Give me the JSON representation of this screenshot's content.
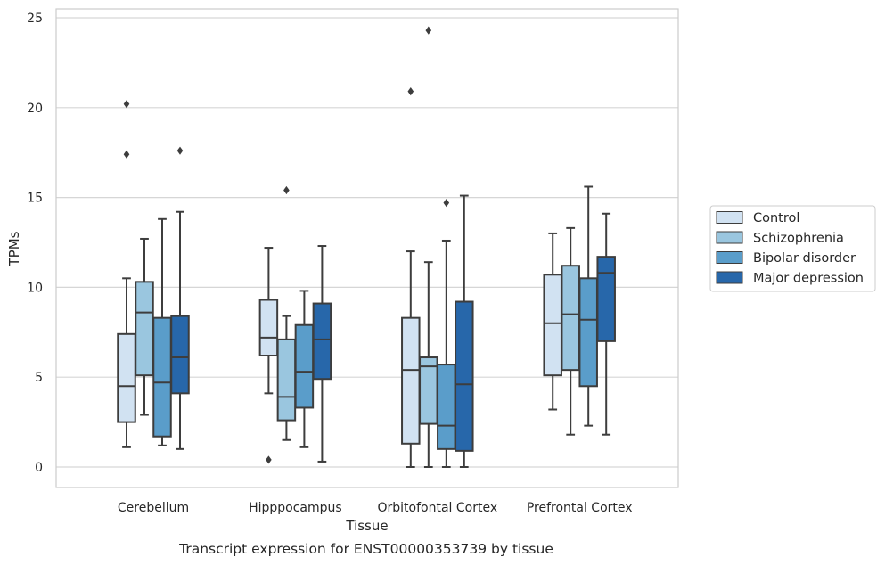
{
  "chart_data": {
    "type": "box",
    "xlabel": "Tissue",
    "ylabel": "TPMs",
    "caption": "Transcript expression for ENST00000353739 by tissue",
    "ylim": [
      -1.2,
      25.6
    ],
    "yticks": [
      0,
      5,
      10,
      15,
      20,
      25
    ],
    "grid": true,
    "legend_position": "right",
    "categories": [
      "Cerebellum",
      "Hipppocampus",
      "Orbitofontal Cortex",
      "Prefrontal Cortex"
    ],
    "series": [
      {
        "name": "Control",
        "color": "#d1e2f2",
        "boxes": [
          {
            "whislo": 1.1,
            "q1": 2.5,
            "med": 4.5,
            "q3": 7.4,
            "whishi": 10.5,
            "fliers": [
              17.4,
              20.2
            ]
          },
          {
            "whislo": 4.1,
            "q1": 6.2,
            "med": 7.2,
            "q3": 9.3,
            "whishi": 12.2,
            "fliers": [
              0.4
            ]
          },
          {
            "whislo": 0.0,
            "q1": 1.3,
            "med": 5.4,
            "q3": 8.3,
            "whishi": 12.0,
            "fliers": [
              20.9
            ]
          },
          {
            "whislo": 3.2,
            "q1": 5.1,
            "med": 8.0,
            "q3": 10.7,
            "whishi": 13.0,
            "fliers": []
          }
        ]
      },
      {
        "name": "Schizophrenia",
        "color": "#9ac6df",
        "boxes": [
          {
            "whislo": 2.9,
            "q1": 5.1,
            "med": 8.6,
            "q3": 10.3,
            "whishi": 12.7,
            "fliers": []
          },
          {
            "whislo": 1.5,
            "q1": 2.6,
            "med": 3.9,
            "q3": 7.1,
            "whishi": 8.4,
            "fliers": [
              15.4
            ]
          },
          {
            "whislo": 0.0,
            "q1": 2.4,
            "med": 5.6,
            "q3": 6.1,
            "whishi": 11.4,
            "fliers": [
              24.3
            ]
          },
          {
            "whislo": 1.8,
            "q1": 5.4,
            "med": 8.5,
            "q3": 11.2,
            "whishi": 13.3,
            "fliers": []
          }
        ]
      },
      {
        "name": "Bipolar disorder",
        "color": "#5a9dca",
        "boxes": [
          {
            "whislo": 1.2,
            "q1": 1.7,
            "med": 4.7,
            "q3": 8.3,
            "whishi": 13.8,
            "fliers": []
          },
          {
            "whislo": 1.1,
            "q1": 3.3,
            "med": 5.3,
            "q3": 7.9,
            "whishi": 9.8,
            "fliers": []
          },
          {
            "whislo": 0.0,
            "q1": 1.0,
            "med": 2.3,
            "q3": 5.7,
            "whishi": 12.6,
            "fliers": [
              14.7
            ]
          },
          {
            "whislo": 2.3,
            "q1": 4.5,
            "med": 8.2,
            "q3": 10.5,
            "whishi": 15.6,
            "fliers": []
          }
        ]
      },
      {
        "name": "Major depression",
        "color": "#2767aa",
        "boxes": [
          {
            "whislo": 1.0,
            "q1": 4.1,
            "med": 6.1,
            "q3": 8.4,
            "whishi": 14.2,
            "fliers": [
              17.6
            ]
          },
          {
            "whislo": 0.3,
            "q1": 4.9,
            "med": 7.1,
            "q3": 9.1,
            "whishi": 12.3,
            "fliers": []
          },
          {
            "whislo": 0.0,
            "q1": 0.9,
            "med": 4.6,
            "q3": 9.2,
            "whishi": 15.1,
            "fliers": []
          },
          {
            "whislo": 1.8,
            "q1": 7.0,
            "med": 10.8,
            "q3": 11.7,
            "whishi": 14.1,
            "fliers": []
          }
        ]
      }
    ],
    "colors": {
      "grid": "#d6d6d6",
      "frame": "#cccccc",
      "box_edge": "#3d3d3d"
    }
  }
}
